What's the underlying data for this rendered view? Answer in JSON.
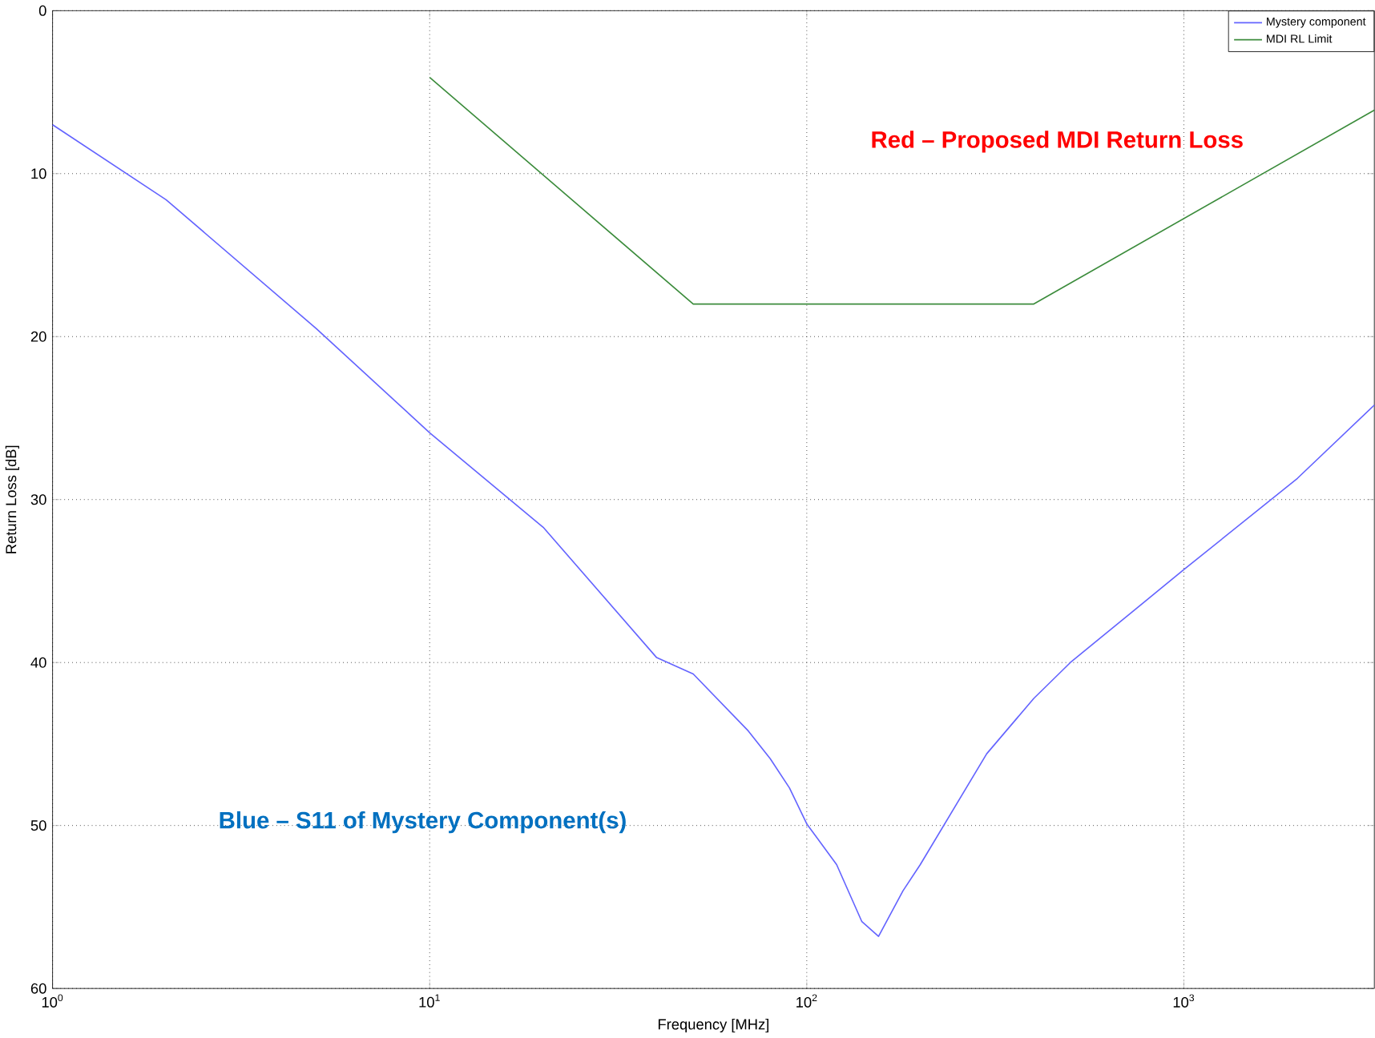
{
  "chart_data": {
    "type": "line",
    "xlabel": "Frequency [MHz]",
    "ylabel": "Return Loss [dB]",
    "log": "x",
    "grid": true,
    "legend": "top right",
    "line_style": "solid",
    "marker": "none",
    "xlim": [
      1,
      3200
    ],
    "ylim": [
      60,
      0
    ],
    "xticks": [
      {
        "value": 1,
        "label": "10$^{0}$"
      },
      {
        "value": 10,
        "label": "10$^{1}$"
      },
      {
        "value": 100,
        "label": "10$^{2}$"
      },
      {
        "value": 1000,
        "label": "10$^{3}$"
      }
    ],
    "yticks": [
      0,
      10,
      20,
      30,
      40,
      50,
      60
    ],
    "series": [
      {
        "name": "Mystery component",
        "color": "#6464ff",
        "x": [
          1,
          2,
          5,
          10,
          20,
          40,
          50,
          70,
          80,
          90,
          100,
          120,
          140,
          155,
          180,
          200,
          300,
          400,
          500,
          600,
          1000,
          2000,
          3200
        ],
        "values": [
          7.0,
          11.6,
          19.5,
          25.9,
          31.7,
          39.7,
          40.7,
          44.2,
          45.9,
          47.7,
          49.9,
          52.4,
          55.9,
          56.8,
          54.0,
          52.4,
          45.6,
          42.2,
          40.0,
          38.5,
          34.3,
          28.7,
          24.2
        ]
      },
      {
        "name": "MDI RL Limit",
        "color": "#3c8c3c",
        "x": [
          10,
          50,
          400,
          3200
        ],
        "values": [
          4.1,
          18,
          18,
          6.1
        ]
      }
    ],
    "annotations": [
      "Red – Proposed MDI Return Loss",
      "Blue – S11 of Mystery Component(s)"
    ]
  }
}
